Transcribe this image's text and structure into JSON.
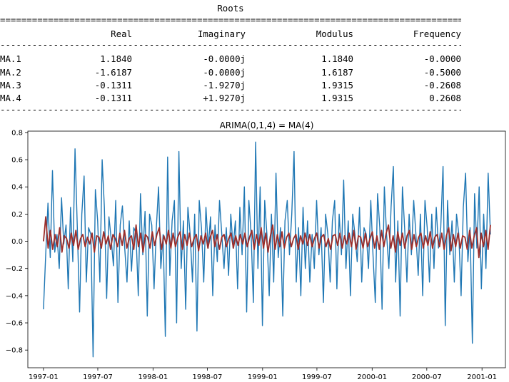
{
  "roots_table": {
    "title": "Roots",
    "double_rule": "==========================================================================================",
    "single_rule": "------------------------------------------------------------------------------------------",
    "headers": [
      "",
      "Real",
      "Imaginary",
      "Modulus",
      "Frequency"
    ],
    "rows": [
      [
        "MA.1",
        "1.1840",
        "-0.0000j",
        "1.1840",
        "-0.0000"
      ],
      [
        "MA.2",
        "-1.6187",
        "-0.0000j",
        "1.6187",
        "-0.5000"
      ],
      [
        "MA.3",
        "-0.1311",
        "-1.9270j",
        "1.9315",
        "-0.2608"
      ],
      [
        "MA.4",
        "-0.1311",
        "+1.9270j",
        "1.9315",
        "0.2608"
      ]
    ]
  },
  "chart_data": {
    "type": "line",
    "title": "ARIMA(0,1,4) = MA(4)",
    "xlabel": "",
    "ylabel": "",
    "x_range": [
      "1996-11-10",
      "2001-03-20"
    ],
    "x_ticks": [
      "1997-01",
      "1997-07",
      "1998-01",
      "1998-07",
      "1999-01",
      "1999-07",
      "2000-01",
      "2000-07",
      "2001-01"
    ],
    "ylim": [
      -0.93,
      0.81
    ],
    "y_ticks": [
      -0.8,
      -0.6,
      -0.4,
      -0.2,
      0.0,
      0.2,
      0.4,
      0.6,
      0.8
    ],
    "y_tick_labels": [
      "−0.8",
      "−0.6",
      "−0.4",
      "−0.2",
      "0.0",
      "0.2",
      "0.4",
      "0.6",
      "0.8"
    ],
    "grid": false,
    "legend": "none",
    "colors": {
      "observed": "#1f77b4",
      "fitted": "#9b2d2a"
    },
    "series": [
      {
        "color": "#1f77b4",
        "x_start": "1997-01-01",
        "x_end": "2001-01-29",
        "values": [
          -0.5,
          -0.1,
          0.28,
          -0.12,
          0.52,
          -0.08,
          0.05,
          -0.2,
          0.32,
          -0.02,
          0.12,
          -0.35,
          0.25,
          -0.15,
          0.68,
          0.1,
          -0.52,
          0.2,
          0.48,
          -0.3,
          0.1,
          0.05,
          -0.85,
          0.38,
          0.15,
          -0.3,
          0.6,
          0.25,
          -0.42,
          0.18,
          0.02,
          -0.18,
          0.3,
          -0.45,
          0.12,
          0.26,
          -0.05,
          -0.3,
          0.15,
          -0.22,
          0.1,
          0.06,
          -0.4,
          0.35,
          -0.1,
          0.22,
          -0.55,
          0.2,
          0.12,
          -0.35,
          0.1,
          0.4,
          -0.2,
          0.05,
          -0.7,
          0.62,
          -0.25,
          0.15,
          0.3,
          -0.6,
          0.66,
          -0.2,
          0.15,
          -0.5,
          0.25,
          0.05,
          -0.3,
          0.2,
          -0.66,
          0.3,
          0.1,
          -0.3,
          0.25,
          -0.05,
          0.18,
          -0.4,
          0.12,
          -0.15,
          0.3,
          0.05,
          -0.2,
          0.1,
          -0.25,
          0.2,
          -0.05,
          0.15,
          -0.35,
          0.25,
          -0.1,
          0.4,
          -0.52,
          0.3,
          0.05,
          -0.45,
          0.73,
          -0.2,
          0.4,
          -0.62,
          0.3,
          0.05,
          -0.4,
          0.2,
          -0.3,
          0.5,
          -0.12,
          0.1,
          -0.55,
          0.15,
          0.3,
          -0.1,
          0.2,
          0.66,
          -0.3,
          0.1,
          -0.4,
          0.25,
          -0.2,
          0.15,
          -0.3,
          0.05,
          -0.2,
          0.3,
          -0.1,
          0.1,
          -0.45,
          0.2,
          0.05,
          -0.3,
          0.15,
          0.3,
          -0.35,
          0.2,
          -0.1,
          0.45,
          -0.2,
          0.15,
          -0.4,
          0.2,
          0.05,
          -0.15,
          0.25,
          -0.3,
          0.1,
          0.05,
          -0.2,
          0.3,
          -0.1,
          -0.45,
          0.35,
          0.1,
          -0.5,
          0.4,
          0.05,
          -0.2,
          0.25,
          0.55,
          -0.3,
          0.15,
          -0.55,
          0.4,
          0.1,
          -0.3,
          0.2,
          -0.1,
          0.3,
          0.05,
          -0.25,
          0.2,
          -0.4,
          0.3,
          0.1,
          -0.3,
          0.2,
          -0.2,
          0.25,
          -0.05,
          0.1,
          0.55,
          -0.62,
          0.3,
          -0.1,
          0.15,
          -0.3,
          0.2,
          0.05,
          -0.4,
          0.25,
          0.5,
          -0.15,
          0.1,
          -0.75,
          0.35,
          -0.05,
          0.4,
          -0.35,
          0.2,
          -0.2,
          0.5,
          0.05
        ]
      },
      {
        "color": "#9b2d2a",
        "x_start": "1997-01-01",
        "x_end": "2001-01-29",
        "values": [
          0.0,
          0.18,
          -0.05,
          0.08,
          -0.06,
          0.05,
          -0.04,
          0.1,
          -0.08,
          0.04,
          0.02,
          -0.05,
          0.06,
          -0.03,
          0.08,
          -0.06,
          0.02,
          0.05,
          -0.04,
          0.03,
          -0.02,
          0.06,
          -0.08,
          0.04,
          0.03,
          -0.05,
          0.07,
          -0.02,
          0.04,
          -0.06,
          0.05,
          0.02,
          -0.04,
          0.06,
          -0.03,
          0.08,
          -0.05,
          0.02,
          0.04,
          -0.06,
          0.12,
          -0.04,
          0.06,
          -0.08,
          0.05,
          0.03,
          -0.05,
          0.07,
          -0.03,
          0.05,
          0.1,
          -0.06,
          0.04,
          -0.02,
          0.08,
          -0.05,
          0.06,
          -0.04,
          0.03,
          0.07,
          -0.06,
          0.05,
          -0.03,
          0.06,
          -0.04,
          0.02,
          0.05,
          -0.07,
          0.04,
          -0.02,
          0.06,
          -0.05,
          0.03,
          0.08,
          -0.04,
          0.05,
          -0.06,
          0.03,
          0.05,
          -0.04,
          0.02,
          0.06,
          -0.05,
          0.04,
          -0.03,
          0.05,
          -0.02,
          0.06,
          -0.04,
          0.03,
          0.08,
          -0.06,
          0.05,
          -0.03,
          0.1,
          -0.05,
          0.06,
          -0.08,
          0.04,
          0.12,
          -0.06,
          0.05,
          -0.04,
          0.07,
          -0.05,
          0.03,
          0.06,
          -0.04,
          0.02,
          0.05,
          -0.06,
          0.04,
          -0.02,
          0.06,
          -0.03,
          0.05,
          -0.04,
          0.02,
          0.06,
          -0.05,
          0.03,
          0.05,
          -0.04,
          0.02,
          -0.06,
          0.04,
          0.05,
          -0.03,
          0.06,
          -0.05,
          0.04,
          -0.02,
          0.06,
          -0.04,
          0.08,
          -0.06,
          0.04,
          0.03,
          -0.05,
          0.06,
          -0.04,
          0.02,
          0.07,
          -0.05,
          0.04,
          -0.06,
          0.08,
          -0.04,
          0.06,
          0.12,
          -0.05,
          0.04,
          -0.08,
          0.07,
          -0.03,
          0.06,
          -0.05,
          0.04,
          0.08,
          -0.06,
          0.05,
          -0.04,
          0.03,
          0.06,
          -0.05,
          0.04,
          -0.03,
          0.07,
          -0.05,
          0.03,
          0.05,
          -0.04,
          0.06,
          -0.06,
          0.04,
          0.1,
          -0.07,
          0.05,
          -0.04,
          0.06,
          -0.05,
          0.04,
          0.03,
          -0.06,
          0.08,
          -0.05,
          0.04,
          0.1,
          -0.12,
          0.06,
          -0.04,
          0.08,
          -0.06,
          0.12
        ]
      }
    ]
  }
}
